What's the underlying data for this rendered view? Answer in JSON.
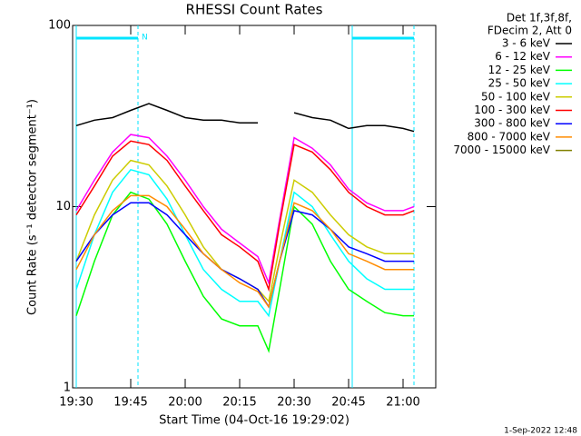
{
  "chart_data": {
    "type": "line",
    "title": "RHESSI Count Rates",
    "xlabel": "Start Time (04-Oct-16 19:29:02)",
    "ylabel": "Count Rate (s⁻¹ detector segment⁻¹)",
    "legend_title": [
      "Det 1f,3f,8f,",
      "FDecim 2, Att 0"
    ],
    "footer": "1-Sep-2022 12:48",
    "log_y": true,
    "xlim": [
      "19:29",
      "21:09"
    ],
    "xticks": [
      "19:30",
      "19:45",
      "20:00",
      "20:15",
      "20:30",
      "20:45",
      "21:00"
    ],
    "ylim": [
      1,
      100
    ],
    "yticks": [
      1,
      10,
      100
    ],
    "intervals": [
      {
        "start": "19:30",
        "end": "19:47",
        "label": "N",
        "color": "#00e5ff"
      },
      {
        "start": "20:46",
        "end": "21:03",
        "color": "#00e5ff"
      }
    ],
    "x": [
      "19:30",
      "19:35",
      "19:40",
      "19:45",
      "19:50",
      "19:55",
      "20:00",
      "20:05",
      "20:10",
      "20:15",
      "20:20",
      "20:23",
      "20:26",
      "20:30",
      "20:35",
      "20:40",
      "20:45",
      "20:50",
      "20:55",
      "21:00",
      "21:03"
    ],
    "series": [
      {
        "name": "3 - 6 keV",
        "color": "#000000",
        "values": [
          28,
          30,
          31,
          34,
          37,
          34,
          31,
          30,
          30,
          29,
          29,
          null,
          null,
          33,
          31,
          30,
          27,
          28,
          28,
          27,
          26
        ]
      },
      {
        "name": "6 - 12 keV",
        "color": "#ff00ff",
        "values": [
          9.5,
          14,
          20,
          25,
          24,
          19,
          14,
          10,
          7.5,
          6.3,
          5.3,
          3.8,
          8.5,
          24,
          21,
          17,
          12.5,
          10.5,
          9.5,
          9.5,
          10
        ]
      },
      {
        "name": "12 - 25 keV",
        "color": "#00ff00",
        "values": [
          2.5,
          5,
          9,
          12,
          11,
          8,
          5,
          3.2,
          2.4,
          2.2,
          2.2,
          1.6,
          3.5,
          10,
          8,
          5,
          3.5,
          3,
          2.6,
          2.5,
          2.5
        ]
      },
      {
        "name": "25 - 50 keV",
        "color": "#00ffff",
        "values": [
          3.5,
          7,
          12,
          16,
          15,
          11,
          7,
          4.5,
          3.5,
          3,
          3,
          2.5,
          5,
          12,
          10,
          7,
          5,
          4,
          3.5,
          3.5,
          3.5
        ]
      },
      {
        "name": "50 - 100 keV",
        "color": "#cccc00",
        "values": [
          5,
          9,
          14,
          18,
          17,
          13,
          9,
          6,
          4.5,
          4,
          3.5,
          3,
          6,
          14,
          12,
          9,
          7,
          6,
          5.5,
          5.5,
          5.5
        ]
      },
      {
        "name": "100 - 300 keV",
        "color": "#ff0000",
        "values": [
          9,
          13,
          19,
          23,
          22,
          18,
          13,
          9.5,
          7,
          6,
          5,
          3.5,
          8,
          22,
          20,
          16,
          12,
          10,
          9,
          9,
          9.5
        ]
      },
      {
        "name": "300 - 800 keV",
        "color": "#0000ff",
        "values": [
          5,
          7,
          9,
          10.5,
          10.5,
          9,
          7,
          5.5,
          4.5,
          4,
          3.5,
          2.8,
          5,
          9.5,
          9,
          7.5,
          6,
          5.5,
          5,
          5,
          5
        ]
      },
      {
        "name": "800 - 7000 keV",
        "color": "#ff8c00",
        "values": [
          4.5,
          7,
          9.5,
          11.5,
          11.5,
          10,
          7.5,
          5.5,
          4.5,
          3.8,
          3.4,
          2.8,
          5,
          10.5,
          9.5,
          7.5,
          5.5,
          5,
          4.5,
          4.5,
          4.5
        ]
      },
      {
        "name": "7000 - 15000 keV",
        "color": "#808000",
        "values": [
          null,
          null,
          null,
          null,
          null,
          null,
          null,
          null,
          null,
          null,
          null,
          null,
          null,
          null,
          null,
          null,
          null,
          null,
          null,
          null,
          null
        ]
      }
    ]
  }
}
